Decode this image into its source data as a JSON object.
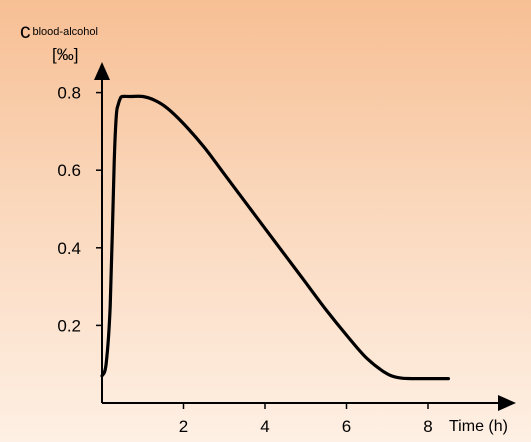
{
  "chart_data": {
    "type": "line",
    "ylabel_main": "c",
    "ylabel_sub": "blood-alcohol",
    "yunit": "[‰]",
    "xlabel": "Time (h)",
    "xticks": [
      2,
      4,
      6,
      8
    ],
    "xtick_labels": [
      "2",
      "4",
      "6",
      "8"
    ],
    "yticks": [
      0.2,
      0.4,
      0.6,
      0.8
    ],
    "ytick_labels": [
      "0.2",
      "0.4",
      "0.6",
      "0.8"
    ],
    "xlim": [
      0,
      10
    ],
    "ylim": [
      0,
      1
    ],
    "grid": false,
    "line_color": "#000000",
    "series": [
      {
        "x": [
          0,
          0.1,
          0.2,
          0.3,
          0.35,
          0.4,
          0.45,
          0.5,
          0.7,
          1.0,
          1.3,
          1.6,
          2.0,
          2.5,
          3.0,
          3.5,
          4.0,
          4.5,
          5.0,
          5.5,
          6.0,
          6.5,
          7.0,
          7.3,
          7.6,
          8.0,
          8.5
        ],
        "y": [
          0.07,
          0.1,
          0.25,
          0.62,
          0.74,
          0.77,
          0.785,
          0.79,
          0.79,
          0.79,
          0.78,
          0.76,
          0.72,
          0.66,
          0.59,
          0.52,
          0.45,
          0.38,
          0.31,
          0.24,
          0.175,
          0.115,
          0.075,
          0.065,
          0.063,
          0.063,
          0.063
        ]
      }
    ]
  }
}
